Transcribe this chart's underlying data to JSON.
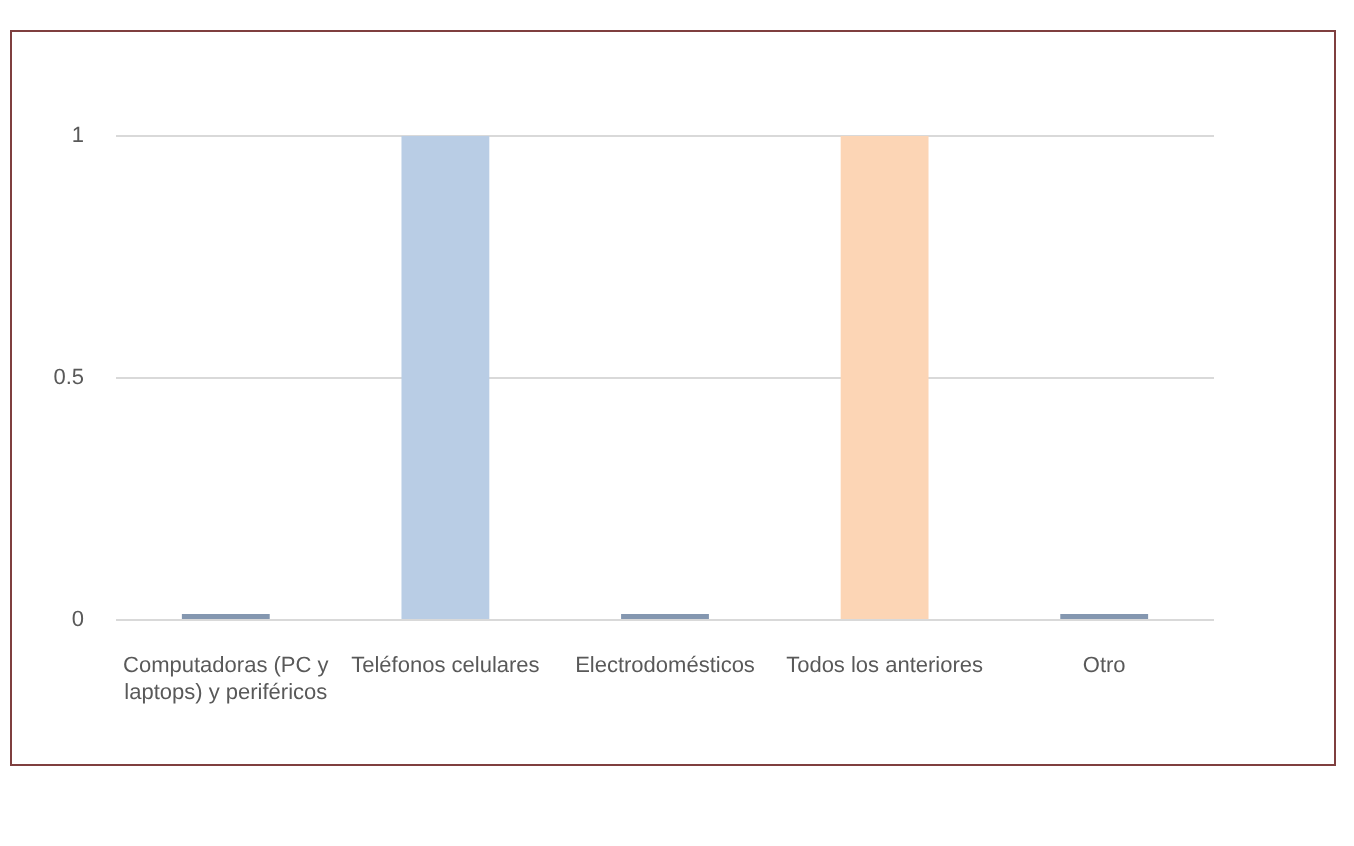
{
  "chart_data": {
    "type": "bar",
    "categories": [
      "Computadoras (PC y laptops) y periféricos",
      "Teléfonos celulares",
      "Electrodomésticos",
      "Todos los anteriores",
      "Otro"
    ],
    "values": [
      0,
      1,
      0,
      1,
      0
    ],
    "colors": [
      "#8497b0",
      "#b9cde5",
      "#8497b0",
      "#fcd5b5",
      "#8497b0"
    ],
    "ylim": [
      0,
      1
    ],
    "yticks": [
      0,
      0.5,
      1
    ],
    "grid": "y"
  }
}
